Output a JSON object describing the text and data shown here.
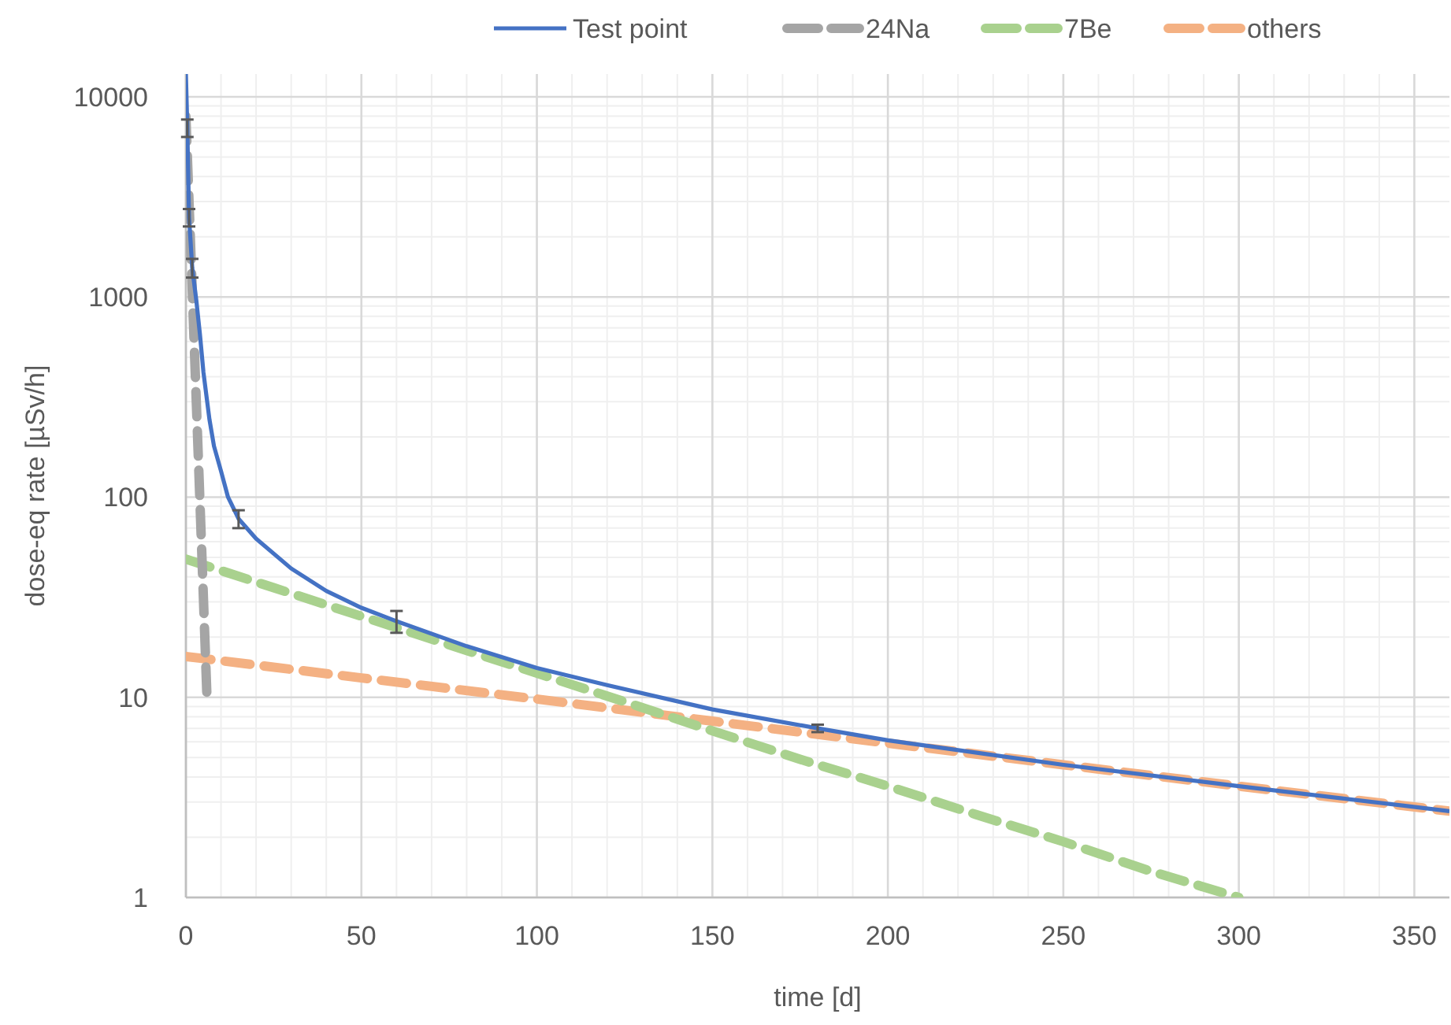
{
  "chart_data": {
    "type": "line",
    "xlabel": "time [d]",
    "ylabel": "dose-eq rate [µSv/h]",
    "log": "y",
    "grid": true,
    "legend": "top",
    "marker": "none",
    "xlim": [
      0,
      360
    ],
    "xticks": [
      0,
      50,
      100,
      150,
      200,
      250,
      300,
      350
    ],
    "ylim": [
      1,
      13000
    ],
    "yticks": [
      1,
      10,
      100,
      1000,
      10000
    ],
    "series": [
      {
        "name": "Test point",
        "color": "#4472c4",
        "line_style": "solid",
        "x": [
          0,
          0.4,
          0.9,
          1.8,
          3,
          4,
          5,
          6.7,
          8,
          10,
          12,
          15,
          20,
          30,
          40,
          50,
          60,
          80,
          100,
          120,
          150,
          180,
          200,
          250,
          300,
          360
        ],
        "values": [
          13000,
          7000,
          2500,
          1400,
          950,
          650,
          420,
          245,
          180,
          135,
          100,
          78,
          62,
          44,
          34,
          28,
          24,
          18,
          14,
          11.5,
          8.7,
          7,
          6.1,
          4.6,
          3.6,
          2.7
        ],
        "errors": [
          null,
          700,
          250,
          150,
          null,
          null,
          null,
          null,
          null,
          null,
          null,
          8,
          null,
          null,
          null,
          null,
          3,
          null,
          null,
          null,
          null,
          0.3,
          null,
          null,
          null,
          null
        ]
      },
      {
        "name": "24Na",
        "color": "#a5a5a5",
        "line_style": "dashed",
        "x": [
          0,
          1,
          2,
          3,
          4,
          5,
          6
        ],
        "values": [
          8000,
          2640,
          870,
          287,
          95,
          31,
          10
        ]
      },
      {
        "name": "7Be",
        "color": "#a9d18e",
        "line_style": "dashed",
        "x": [
          0,
          25,
          50,
          75,
          100,
          125,
          150,
          175,
          200,
          225,
          250,
          275,
          300
        ],
        "values": [
          49,
          35.3,
          25.4,
          18.3,
          13.2,
          9.5,
          6.8,
          4.9,
          3.6,
          2.6,
          1.9,
          1.35,
          1
        ]
      },
      {
        "name": "others",
        "color": "#f4b183",
        "line_style": "dashed",
        "x": [
          0,
          50,
          100,
          150,
          200,
          250,
          300,
          360
        ],
        "values": [
          16,
          12.5,
          9.8,
          7.6,
          5.9,
          4.6,
          3.6,
          2.7
        ]
      }
    ]
  }
}
